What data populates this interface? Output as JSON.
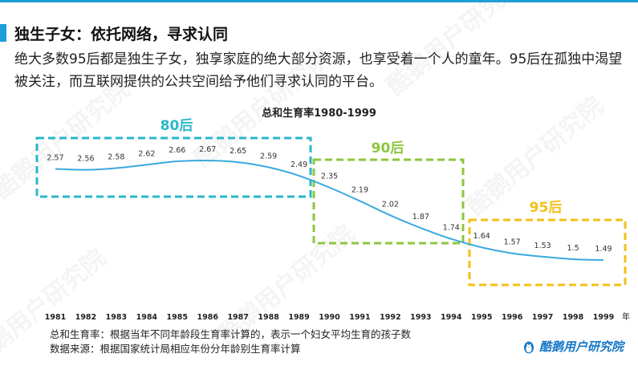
{
  "header": {
    "title": "独生子女：依托网络，寻求认同",
    "description": "绝大多数95后都是独生子女，独享家庭的绝大部分资源，也享受着一个人的童年。95后在孤独中渴望被关注，而互联网提供的公共空间给予他们寻求认同的平台。"
  },
  "chart_data": {
    "type": "line",
    "title": "总和生育率1980-1999",
    "x_unit": "年",
    "categories": [
      "1981",
      "1982",
      "1983",
      "1984",
      "1985",
      "1986",
      "1987",
      "1988",
      "1989",
      "1990",
      "1991",
      "1992",
      "1993",
      "1994",
      "1995",
      "1996",
      "1997",
      "1998",
      "1999"
    ],
    "series": [
      {
        "values": [
          2.57,
          2.56,
          2.58,
          2.62,
          2.66,
          2.67,
          2.65,
          2.59,
          2.49,
          2.35,
          2.19,
          2.02,
          1.87,
          1.74,
          1.64,
          1.57,
          1.53,
          1.5,
          1.49
        ],
        "color": "#3ba9df"
      }
    ],
    "groups": [
      {
        "label": "80后",
        "from": "1981",
        "to": "1989",
        "color": "#29b7c9"
      },
      {
        "label": "90后",
        "from": "1990",
        "to": "1994",
        "color": "#8cc63e"
      },
      {
        "label": "95后",
        "from": "1995",
        "to": "1999",
        "color": "#f3c019"
      }
    ]
  },
  "footer": {
    "note": "总和生育率：根据当年不同年龄段生育率计算的，表示一个妇女平均生育的孩子数",
    "source": "数据来源：根据国家统计局相应年份分年龄别生育率计算",
    "logo": "酷鹅用户研究院",
    "brand_color": "#1778c7"
  },
  "watermark": "酷鹅用户研究院"
}
